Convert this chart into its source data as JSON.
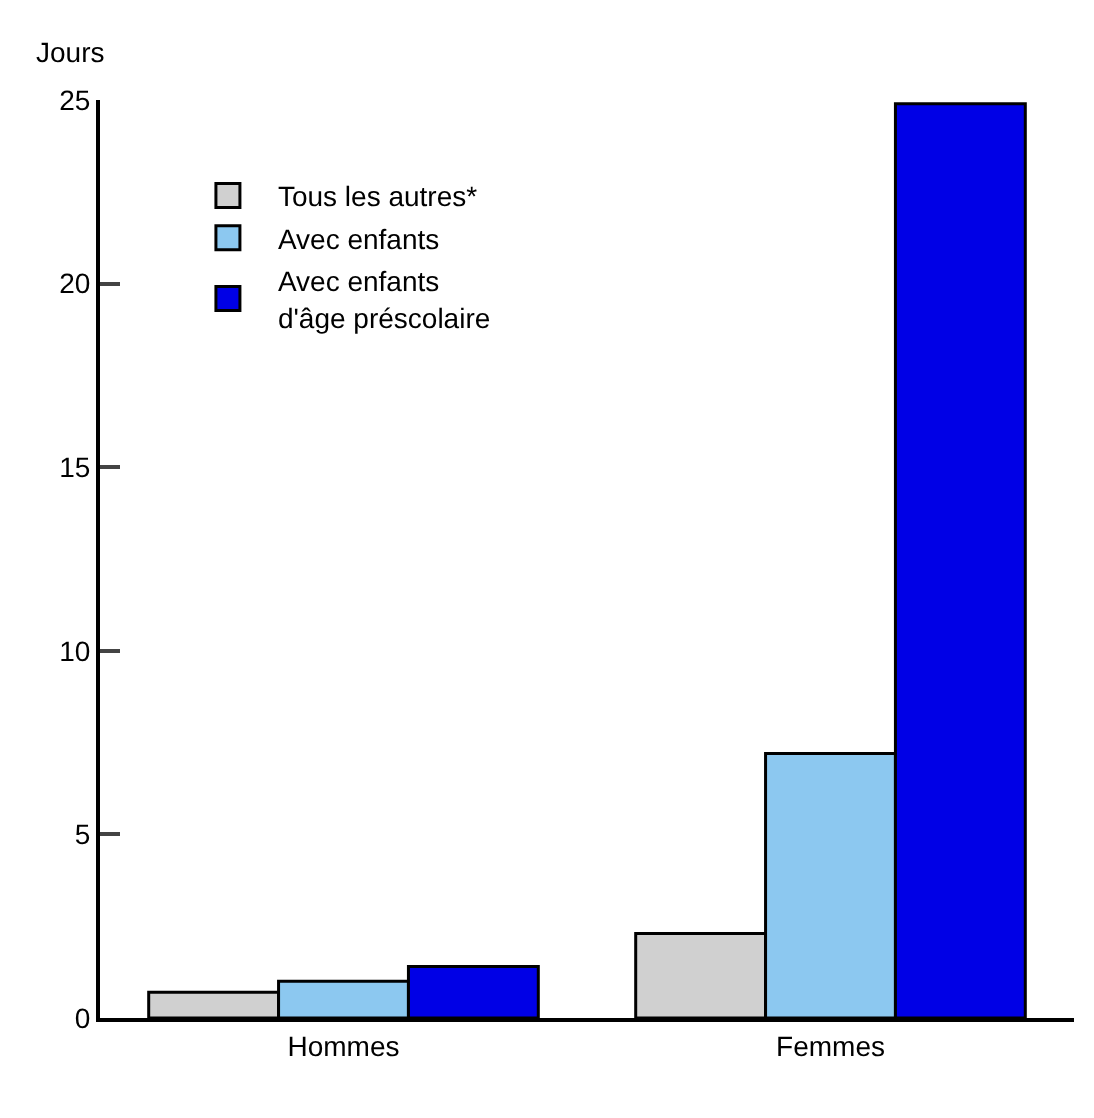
{
  "chart_data": {
    "type": "bar",
    "ylabel": "Jours",
    "categories": [
      "Hommes",
      "Femmes"
    ],
    "series": [
      {
        "name": "Tous les autres*",
        "color": "#d0d0d0",
        "values": [
          0.7,
          2.3
        ]
      },
      {
        "name": "Avec enfants",
        "color": "#8cc8f0",
        "values": [
          1.0,
          7.2
        ]
      },
      {
        "name": "Avec enfants\nd'âge préscolaire",
        "color": "#0000e6",
        "values": [
          1.4,
          24.9
        ]
      }
    ],
    "ylim": [
      0,
      25
    ],
    "yticks": [
      0,
      5,
      10,
      15,
      20,
      25
    ],
    "grid": false,
    "legend": "top left"
  }
}
